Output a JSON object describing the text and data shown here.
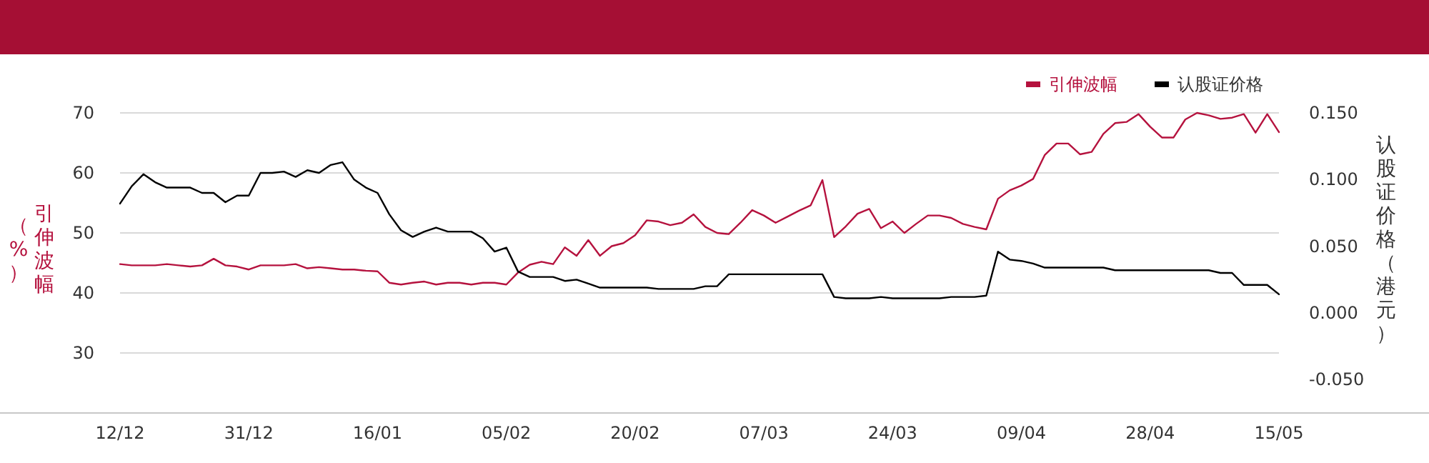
{
  "chart_data": {
    "type": "line",
    "categories": [
      "12/12",
      null,
      null,
      null,
      null,
      null,
      null,
      null,
      null,
      null,
      null,
      "31/12",
      null,
      null,
      null,
      null,
      null,
      null,
      null,
      null,
      null,
      null,
      "16/01",
      null,
      null,
      null,
      null,
      null,
      null,
      null,
      null,
      null,
      null,
      "05/02",
      null,
      null,
      null,
      null,
      null,
      null,
      null,
      null,
      null,
      null,
      "20/02",
      null,
      null,
      null,
      null,
      null,
      null,
      null,
      null,
      null,
      null,
      "07/03",
      null,
      null,
      null,
      null,
      null,
      null,
      null,
      null,
      null,
      null,
      "24/03",
      null,
      null,
      null,
      null,
      null,
      null,
      null,
      null,
      null,
      null,
      "09/04",
      null,
      null,
      null,
      null,
      null,
      null,
      null,
      null,
      null,
      null,
      "28/04",
      null,
      null,
      null,
      null,
      null,
      null,
      null,
      null,
      null,
      null,
      "15/05"
    ],
    "series": [
      {
        "name": "引伸波幅",
        "color": "#b5123e",
        "values": [
          44.8,
          44.6,
          44.6,
          44.6,
          44.8,
          44.6,
          44.4,
          44.6,
          45.7,
          44.6,
          44.4,
          43.9,
          44.6,
          44.6,
          44.6,
          44.8,
          44.1,
          44.3,
          44.1,
          43.9,
          43.9,
          43.7,
          43.6,
          41.7,
          41.4,
          41.7,
          41.9,
          41.4,
          41.7,
          41.7,
          41.4,
          41.7,
          41.7,
          41.4,
          43.4,
          44.7,
          45.2,
          44.8,
          47.6,
          46.2,
          48.8,
          46.2,
          47.8,
          48.3,
          49.6,
          52.1,
          51.9,
          51.3,
          51.7,
          53.1,
          51.0,
          50.0,
          49.8,
          51.7,
          53.8,
          52.9,
          51.7,
          52.7,
          53.7,
          54.6,
          58.8,
          49.3,
          51.1,
          53.2,
          54.0,
          50.8,
          51.9,
          50.0,
          51.5,
          52.9,
          52.9,
          52.5,
          51.5,
          51.0,
          50.6,
          55.7,
          57.1,
          57.9,
          59.0,
          63.0,
          64.9,
          64.9,
          63.1,
          63.5,
          66.5,
          68.3,
          68.5,
          69.8,
          67.7,
          65.9,
          65.9,
          68.9,
          70.0,
          69.6,
          69.0,
          69.2,
          69.8,
          66.7,
          69.8,
          66.8
        ]
      },
      {
        "name": "认股证价格",
        "color": "#000000",
        "axis": "y2",
        "values": [
          0.082,
          0.095,
          0.104,
          0.098,
          0.094,
          0.094,
          0.094,
          0.09,
          0.09,
          0.083,
          0.088,
          0.088,
          0.105,
          0.105,
          0.106,
          0.102,
          0.107,
          0.105,
          0.111,
          0.113,
          0.1,
          0.094,
          0.09,
          0.074,
          0.062,
          0.057,
          0.061,
          0.064,
          0.061,
          0.061,
          0.061,
          0.056,
          0.046,
          0.049,
          0.031,
          0.027,
          0.027,
          0.027,
          0.024,
          0.025,
          0.022,
          0.019,
          0.019,
          0.019,
          0.019,
          0.019,
          0.018,
          0.018,
          0.018,
          0.018,
          0.02,
          0.02,
          0.029,
          0.029,
          0.029,
          0.029,
          0.029,
          0.029,
          0.029,
          0.029,
          0.029,
          0.012,
          0.011,
          0.011,
          0.011,
          0.012,
          0.011,
          0.011,
          0.011,
          0.011,
          0.011,
          0.012,
          0.012,
          0.012,
          0.013,
          0.046,
          0.04,
          0.039,
          0.037,
          0.034,
          0.034,
          0.034,
          0.034,
          0.034,
          0.034,
          0.032,
          0.032,
          0.032,
          0.032,
          0.032,
          0.032,
          0.032,
          0.032,
          0.032,
          0.03,
          0.03,
          0.021,
          0.021,
          0.021,
          0.014
        ]
      }
    ],
    "ylabel": "引伸波幅（%）",
    "y2label": "认股证价格（港元）",
    "ylim": [
      20,
      70
    ],
    "yticks": [
      30,
      40,
      50,
      60,
      70
    ],
    "y2lim": [
      -0.075,
      0.15
    ],
    "y2ticks": [
      {
        "value": -0.05,
        "label": "-0.050"
      },
      {
        "value": 0,
        "label": "0.000"
      },
      {
        "value": 0.05,
        "label": "0.050"
      },
      {
        "value": 0.1,
        "label": "0.100"
      },
      {
        "value": 0.15,
        "label": "0.150"
      }
    ],
    "grid": "y",
    "legend": "top right",
    "marker": "none",
    "line_style": "solid"
  }
}
